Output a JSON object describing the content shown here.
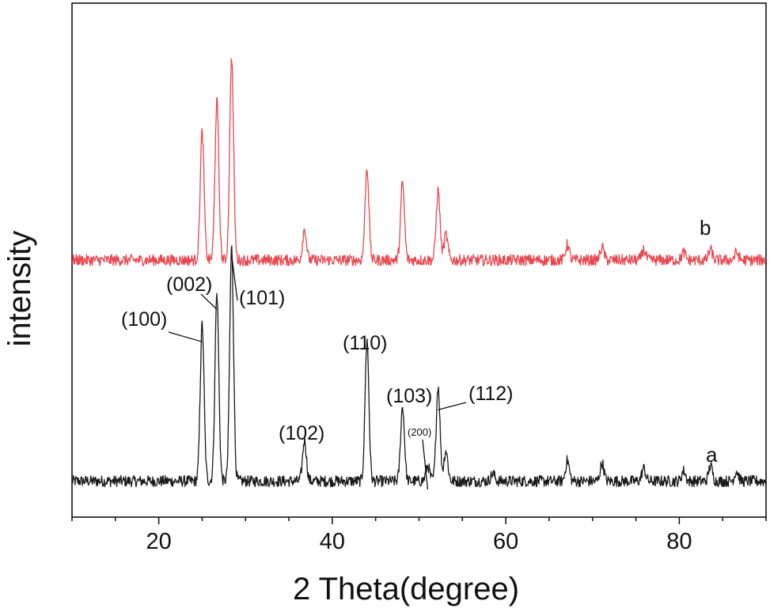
{
  "chart_data": {
    "type": "line",
    "title": "",
    "xlabel": "2 Theta(degree)",
    "ylabel": "intensity",
    "xlim": [
      10,
      90
    ],
    "ylim": [
      0,
      1
    ],
    "xticks": [
      20,
      40,
      60,
      80
    ],
    "yticks": [],
    "grid": false,
    "legend": "none",
    "series": [
      {
        "name": "a",
        "color": "#1a1a1a",
        "baseline": 0.07,
        "peaks": [
          {
            "x": 25.0,
            "h": 0.305
          },
          {
            "x": 26.7,
            "h": 0.365
          },
          {
            "x": 28.4,
            "h": 0.455
          },
          {
            "x": 36.8,
            "h": 0.08
          },
          {
            "x": 44.0,
            "h": 0.275
          },
          {
            "x": 48.1,
            "h": 0.145
          },
          {
            "x": 51.0,
            "h": 0.03
          },
          {
            "x": 52.2,
            "h": 0.185
          },
          {
            "x": 53.1,
            "h": 0.06
          },
          {
            "x": 58.5,
            "h": 0.015
          },
          {
            "x": 67.1,
            "h": 0.04
          },
          {
            "x": 71.1,
            "h": 0.035
          },
          {
            "x": 75.9,
            "h": 0.025
          },
          {
            "x": 80.5,
            "h": 0.02
          },
          {
            "x": 83.6,
            "h": 0.03
          },
          {
            "x": 86.6,
            "h": 0.02
          }
        ]
      },
      {
        "name": "b",
        "color": "#e8474f",
        "baseline": 0.5,
        "peaks": [
          {
            "x": 25.0,
            "h": 0.25
          },
          {
            "x": 26.7,
            "h": 0.31
          },
          {
            "x": 28.4,
            "h": 0.395
          },
          {
            "x": 36.8,
            "h": 0.06
          },
          {
            "x": 44.0,
            "h": 0.18
          },
          {
            "x": 48.1,
            "h": 0.15
          },
          {
            "x": 52.2,
            "h": 0.135
          },
          {
            "x": 53.1,
            "h": 0.05
          },
          {
            "x": 67.1,
            "h": 0.03
          },
          {
            "x": 71.1,
            "h": 0.025
          },
          {
            "x": 75.9,
            "h": 0.02
          },
          {
            "x": 80.5,
            "h": 0.015
          },
          {
            "x": 83.6,
            "h": 0.02
          },
          {
            "x": 86.6,
            "h": 0.015
          }
        ]
      }
    ],
    "annotations": [
      {
        "text": "(100)",
        "x": 25.0
      },
      {
        "text": "(002)",
        "x": 26.7
      },
      {
        "text": "(101)",
        "x": 28.4
      },
      {
        "text": "(102)",
        "x": 36.8
      },
      {
        "text": "(110)",
        "x": 44.0
      },
      {
        "text": "(103)",
        "x": 48.1
      },
      {
        "text": "(200)",
        "x": 51.0
      },
      {
        "text": "(112)",
        "x": 52.2
      }
    ],
    "series_labels": [
      "a",
      "b"
    ]
  }
}
